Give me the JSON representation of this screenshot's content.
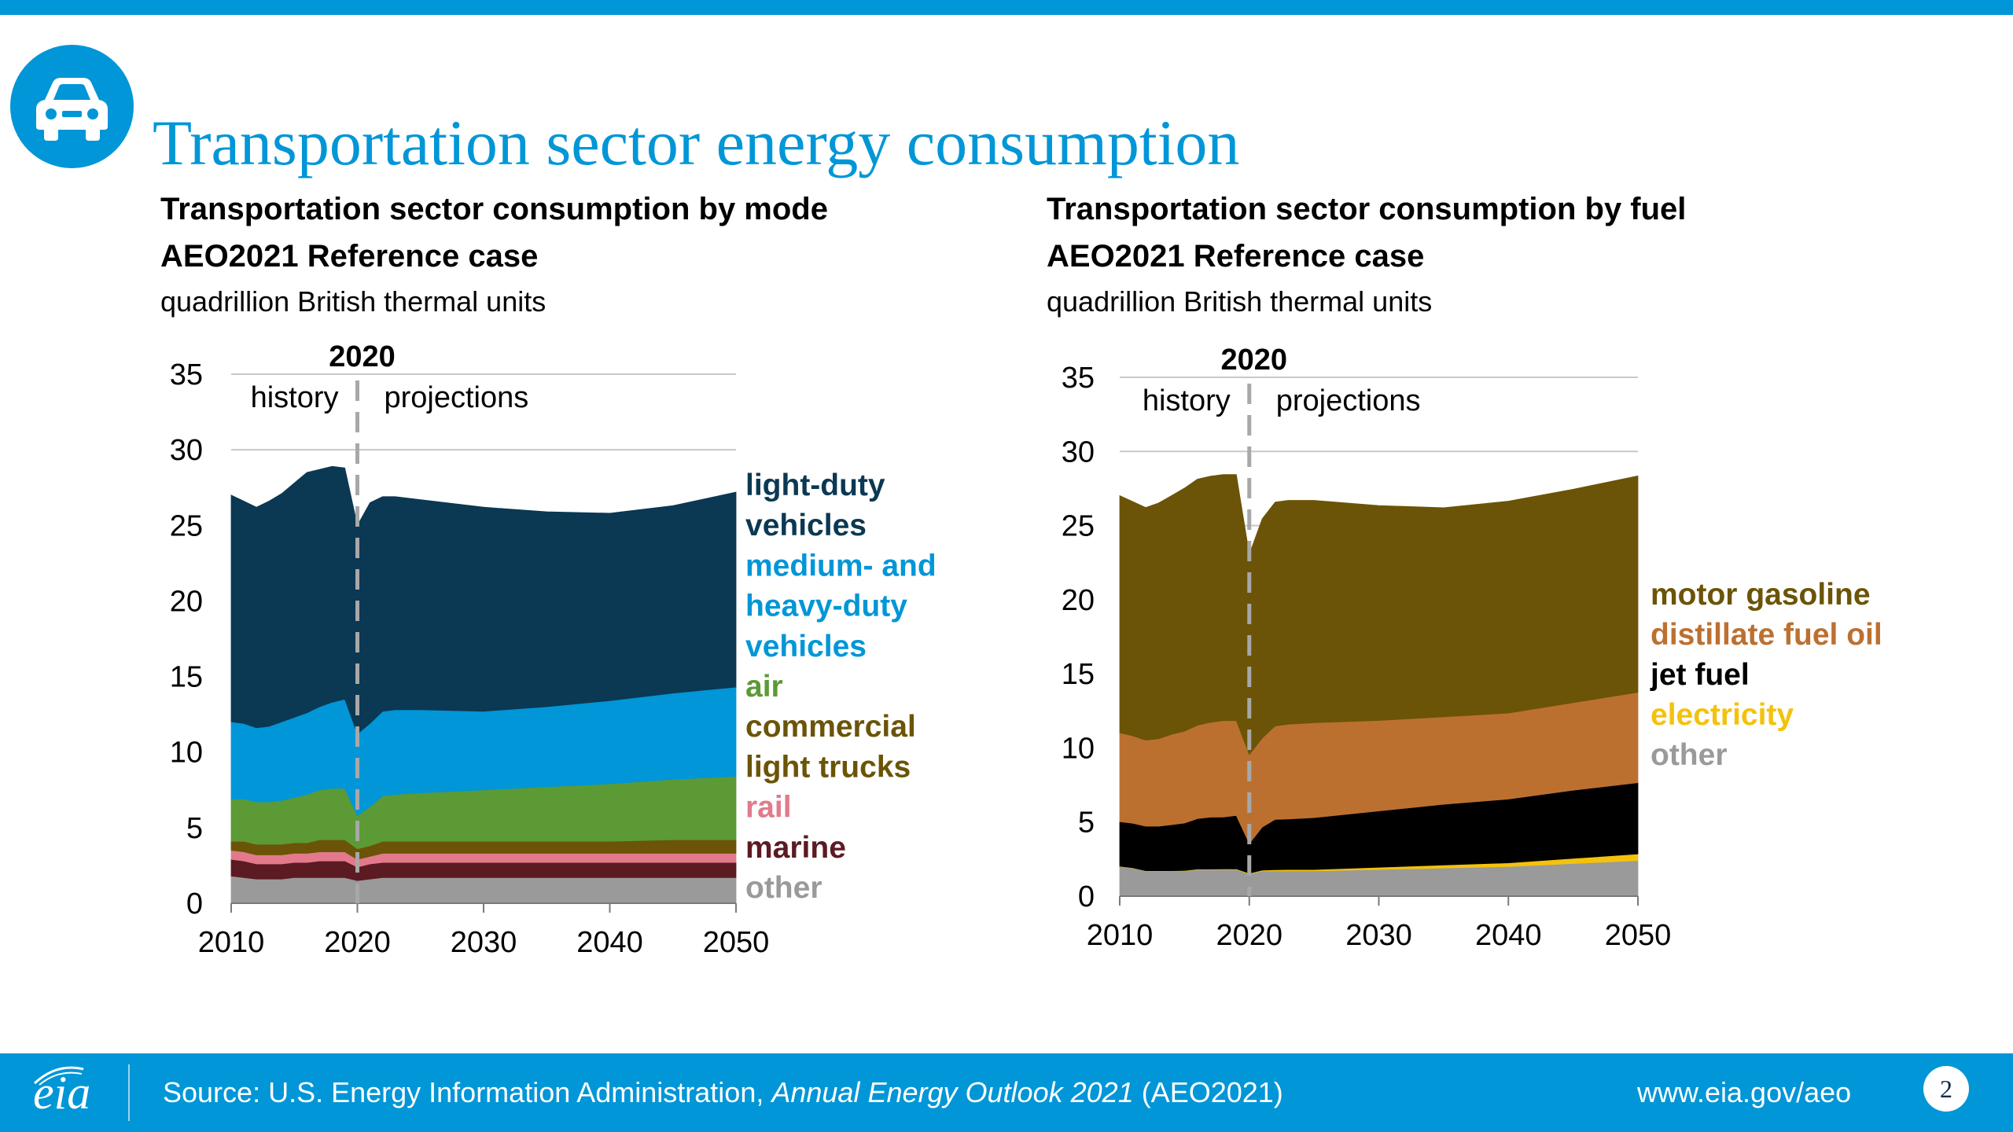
{
  "header": {
    "title": "Transportation sector energy consumption",
    "icon": "car-icon"
  },
  "colors": {
    "brand_blue": "#0096d7",
    "light_duty": "#0b3853",
    "medium_heavy": "#0096d7",
    "air": "#5b9a35",
    "commercial_light_trucks": "#6b5407",
    "rail": "#e27a8c",
    "marine": "#5c1a22",
    "other": "#9a9a9a",
    "motor_gasoline": "#6b5407",
    "distillate": "#bc7030",
    "jet_fuel": "#000000",
    "electricity": "#f4c20d"
  },
  "chart_data": [
    {
      "type": "area",
      "stacked": true,
      "title": "Transportation sector consumption by mode",
      "subtitle": "AEO2021 Reference case",
      "unit": "quadrillion British thermal units",
      "x": [
        2010,
        2011,
        2012,
        2013,
        2014,
        2015,
        2016,
        2017,
        2018,
        2019,
        2020,
        2021,
        2022,
        2023,
        2025,
        2030,
        2035,
        2040,
        2045,
        2050
      ],
      "ylim": [
        0,
        35
      ],
      "yticks": [
        0,
        5,
        10,
        15,
        20,
        25,
        30,
        35
      ],
      "xticks": [
        2010,
        2020,
        2030,
        2040,
        2050
      ],
      "grid": true,
      "divider": {
        "year": 2020,
        "label": "2020",
        "left_label": "history",
        "right_label": "projections"
      },
      "legend_position": "right",
      "series": [
        {
          "name": "other",
          "color": "#9a9a9a",
          "values": [
            1.8,
            1.7,
            1.6,
            1.6,
            1.6,
            1.7,
            1.7,
            1.7,
            1.7,
            1.7,
            1.5,
            1.6,
            1.7,
            1.7,
            1.7,
            1.7,
            1.7,
            1.7,
            1.7,
            1.7
          ]
        },
        {
          "name": "marine",
          "color": "#5c1a22",
          "values": [
            1.1,
            1.1,
            1.0,
            1.0,
            1.0,
            1.0,
            1.0,
            1.1,
            1.1,
            1.1,
            0.9,
            1.0,
            1.0,
            1.0,
            1.0,
            1.0,
            1.0,
            1.0,
            1.0,
            1.0
          ]
        },
        {
          "name": "rail",
          "color": "#e27a8c",
          "values": [
            0.6,
            0.6,
            0.6,
            0.6,
            0.6,
            0.6,
            0.6,
            0.6,
            0.6,
            0.6,
            0.5,
            0.5,
            0.6,
            0.6,
            0.6,
            0.6,
            0.6,
            0.6,
            0.6,
            0.6
          ]
        },
        {
          "name": "commercial light trucks",
          "color": "#6b5407",
          "values": [
            0.6,
            0.7,
            0.7,
            0.7,
            0.7,
            0.7,
            0.7,
            0.8,
            0.8,
            0.8,
            0.7,
            0.7,
            0.8,
            0.8,
            0.8,
            0.8,
            0.8,
            0.8,
            0.9,
            0.9
          ]
        },
        {
          "name": "air",
          "color": "#5b9a35",
          "values": [
            2.8,
            2.8,
            2.8,
            2.8,
            2.9,
            3.0,
            3.2,
            3.3,
            3.4,
            3.4,
            2.2,
            2.6,
            3.0,
            3.1,
            3.2,
            3.4,
            3.6,
            3.8,
            4.0,
            4.2
          ]
        },
        {
          "name": "medium- and heavy-duty vehicles",
          "color": "#0096d7",
          "values": [
            5.1,
            5.0,
            4.9,
            5.0,
            5.2,
            5.3,
            5.4,
            5.5,
            5.7,
            5.9,
            5.4,
            5.5,
            5.6,
            5.6,
            5.5,
            5.2,
            5.3,
            5.5,
            5.7,
            5.9
          ]
        },
        {
          "name": "light-duty vehicles",
          "color": "#0b3853",
          "values": [
            15.0,
            14.7,
            14.6,
            14.9,
            15.1,
            15.5,
            15.9,
            15.7,
            15.6,
            15.3,
            13.8,
            14.6,
            14.2,
            14.1,
            13.9,
            13.5,
            12.9,
            12.4,
            12.4,
            12.9
          ]
        }
      ]
    },
    {
      "type": "area",
      "stacked": true,
      "title": "Transportation sector consumption by fuel",
      "subtitle": "AEO2021 Reference case",
      "unit": "quadrillion British thermal units",
      "x": [
        2010,
        2011,
        2012,
        2013,
        2014,
        2015,
        2016,
        2017,
        2018,
        2019,
        2020,
        2021,
        2022,
        2023,
        2025,
        2030,
        2035,
        2040,
        2045,
        2050
      ],
      "ylim": [
        0,
        35
      ],
      "yticks": [
        0,
        5,
        10,
        15,
        20,
        25,
        30,
        35
      ],
      "xticks": [
        2010,
        2020,
        2030,
        2040,
        2050
      ],
      "grid": true,
      "divider": {
        "year": 2020,
        "label": "2020",
        "left_label": "history",
        "right_label": "projections"
      },
      "legend_position": "right",
      "series": [
        {
          "name": "other",
          "color": "#9a9a9a",
          "values": [
            2.0,
            1.9,
            1.7,
            1.7,
            1.7,
            1.7,
            1.8,
            1.8,
            1.8,
            1.8,
            1.5,
            1.7,
            1.7,
            1.7,
            1.7,
            1.8,
            1.9,
            2.0,
            2.2,
            2.4
          ]
        },
        {
          "name": "electricity",
          "color": "#f4c20d",
          "values": [
            0.02,
            0.02,
            0.02,
            0.02,
            0.02,
            0.03,
            0.03,
            0.03,
            0.04,
            0.04,
            0.05,
            0.06,
            0.08,
            0.1,
            0.1,
            0.15,
            0.2,
            0.25,
            0.35,
            0.45
          ]
        },
        {
          "name": "jet fuel",
          "color": "#000000",
          "values": [
            3.0,
            3.0,
            3.0,
            3.0,
            3.1,
            3.2,
            3.4,
            3.5,
            3.5,
            3.6,
            2.0,
            2.9,
            3.4,
            3.4,
            3.5,
            3.8,
            4.1,
            4.3,
            4.6,
            4.8
          ]
        },
        {
          "name": "distillate fuel oil",
          "color": "#bc7030",
          "values": [
            6.0,
            5.9,
            5.8,
            5.9,
            6.1,
            6.2,
            6.3,
            6.4,
            6.5,
            6.4,
            6.0,
            6.0,
            6.3,
            6.4,
            6.4,
            6.1,
            5.9,
            5.8,
            5.9,
            6.1
          ]
        },
        {
          "name": "motor gasoline",
          "color": "#6b5407",
          "values": [
            16.0,
            15.8,
            15.7,
            15.9,
            16.1,
            16.4,
            16.6,
            16.6,
            16.6,
            16.6,
            13.5,
            14.8,
            15.1,
            15.1,
            15.0,
            14.5,
            14.1,
            14.3,
            14.4,
            14.6
          ]
        }
      ]
    }
  ],
  "legends": {
    "mode": [
      {
        "lines": [
          "light-duty",
          "vehicles"
        ],
        "color": "#0b3853"
      },
      {
        "lines": [
          "medium- and",
          "heavy-duty",
          "vehicles"
        ],
        "color": "#0096d7"
      },
      {
        "lines": [
          "air"
        ],
        "color": "#5b9a35"
      },
      {
        "lines": [
          "commercial",
          "light trucks"
        ],
        "color": "#6b5407"
      },
      {
        "lines": [
          "rail"
        ],
        "color": "#e27a8c"
      },
      {
        "lines": [
          "marine"
        ],
        "color": "#5c1a22"
      },
      {
        "lines": [
          "other"
        ],
        "color": "#9a9a9a"
      }
    ],
    "fuel": [
      {
        "lines": [
          "motor gasoline"
        ],
        "color": "#6b5407"
      },
      {
        "lines": [
          "distillate fuel oil"
        ],
        "color": "#bc7030"
      },
      {
        "lines": [
          "jet fuel"
        ],
        "color": "#000000"
      },
      {
        "lines": [
          "electricity"
        ],
        "color": "#f4c20d"
      },
      {
        "lines": [
          "other"
        ],
        "color": "#9a9a9a"
      }
    ]
  },
  "footer": {
    "source_prefix": "Source: U.S. Energy Information Administration, ",
    "source_publication": "Annual Energy Outlook 2021",
    "source_suffix": " (AEO2021)",
    "url": "www.eia.gov/aeo",
    "page_number": "2",
    "logo_text": "eia"
  }
}
